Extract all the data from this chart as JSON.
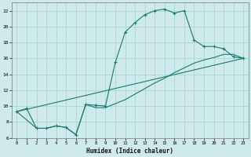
{
  "xlabel": "Humidex (Indice chaleur)",
  "xlim": [
    -0.5,
    23.5
  ],
  "ylim": [
    6,
    23
  ],
  "xticks": [
    0,
    1,
    2,
    3,
    4,
    5,
    6,
    7,
    8,
    9,
    10,
    11,
    12,
    13,
    14,
    15,
    16,
    17,
    18,
    19,
    20,
    21,
    22,
    23
  ],
  "yticks": [
    6,
    8,
    10,
    12,
    14,
    16,
    18,
    20,
    22
  ],
  "bg_color": "#ceeaea",
  "grid_color": "#aed4d4",
  "line_color": "#1a7a6e",
  "curve1_x": [
    0,
    1,
    2,
    3,
    4,
    5,
    6,
    7,
    8,
    9,
    10,
    11,
    12,
    13,
    14,
    15,
    16,
    17,
    18,
    19,
    20,
    21,
    22,
    23
  ],
  "curve1_y": [
    9.3,
    9.7,
    7.2,
    7.2,
    7.5,
    7.3,
    6.4,
    10.2,
    10.1,
    10.0,
    15.5,
    19.3,
    20.5,
    21.5,
    22.0,
    22.2,
    21.7,
    22.0,
    18.3,
    17.5,
    17.5,
    17.2,
    16.2,
    16.0
  ],
  "curve2_x": [
    0,
    23
  ],
  "curve2_y": [
    9.3,
    16.0
  ],
  "curve3_x": [
    0,
    2,
    3,
    4,
    5,
    6,
    7,
    8,
    9,
    10,
    11,
    12,
    13,
    14,
    15,
    16,
    17,
    18,
    19,
    20,
    21,
    22,
    23
  ],
  "curve3_y": [
    9.3,
    7.2,
    7.2,
    7.5,
    7.3,
    6.4,
    10.2,
    9.8,
    9.8,
    10.3,
    10.8,
    11.5,
    12.2,
    12.9,
    13.5,
    14.2,
    14.8,
    15.4,
    15.8,
    16.1,
    16.5,
    16.5,
    16.0
  ]
}
